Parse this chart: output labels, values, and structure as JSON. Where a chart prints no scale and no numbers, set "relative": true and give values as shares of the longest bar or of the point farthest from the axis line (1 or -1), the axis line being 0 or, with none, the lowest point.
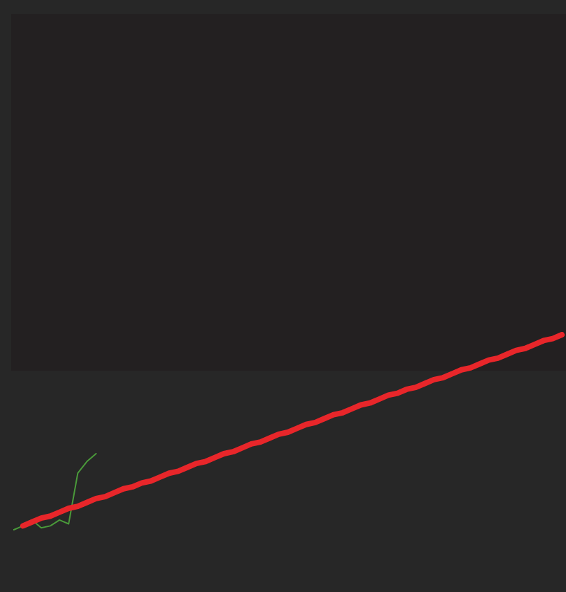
{
  "chart_data": {
    "type": "line",
    "relative": true,
    "grid": false,
    "marker": "none",
    "line_style": "solid",
    "categories": [
      null,
      null,
      null,
      null,
      null,
      null,
      null,
      null,
      null,
      null,
      null,
      null,
      null,
      null,
      null,
      null,
      null,
      null,
      null,
      null,
      null,
      null,
      null,
      null,
      null,
      null,
      null,
      null,
      null,
      null,
      null,
      null,
      null,
      null,
      null,
      null,
      null,
      null,
      null,
      null,
      null,
      null,
      null,
      null,
      null,
      null,
      null,
      null,
      null,
      null,
      null,
      null,
      null,
      null,
      null,
      null,
      null,
      null,
      null,
      null,
      null
    ],
    "series": [
      {
        "color": "#4a9a3a",
        "values": [
          0,
          0.02,
          0.05,
          0.01,
          0.02,
          0.05,
          0.03,
          0.29,
          0.35,
          0.39,
          null,
          null,
          null,
          null,
          null,
          null,
          null,
          null,
          null,
          null,
          null,
          null,
          null,
          null,
          null,
          null,
          null,
          null,
          null,
          null,
          null,
          null,
          null,
          null,
          null,
          null,
          null,
          null,
          null,
          null,
          null,
          null,
          null,
          null,
          null,
          null,
          null,
          null,
          null,
          null,
          null,
          null,
          null,
          null,
          null,
          null,
          null,
          null,
          null,
          null,
          null
        ]
      },
      {
        "color": "#e8262a",
        "values": [
          null,
          0.02,
          0.04,
          0.06,
          0.07,
          0.09,
          0.11,
          0.12,
          0.14,
          0.16,
          0.17,
          0.19,
          0.21,
          0.22,
          0.24,
          0.25,
          0.27,
          0.29,
          0.3,
          0.32,
          0.34,
          0.35,
          0.37,
          0.39,
          0.4,
          0.42,
          0.44,
          0.45,
          0.47,
          0.49,
          0.5,
          0.52,
          0.54,
          0.55,
          0.57,
          0.59,
          0.6,
          0.62,
          0.64,
          0.65,
          0.67,
          0.69,
          0.7,
          0.72,
          0.73,
          0.75,
          0.77,
          0.78,
          0.8,
          0.82,
          0.83,
          0.85,
          0.87,
          0.88,
          0.9,
          0.92,
          0.93,
          0.95,
          0.97,
          0.98,
          1
        ]
      }
    ]
  }
}
